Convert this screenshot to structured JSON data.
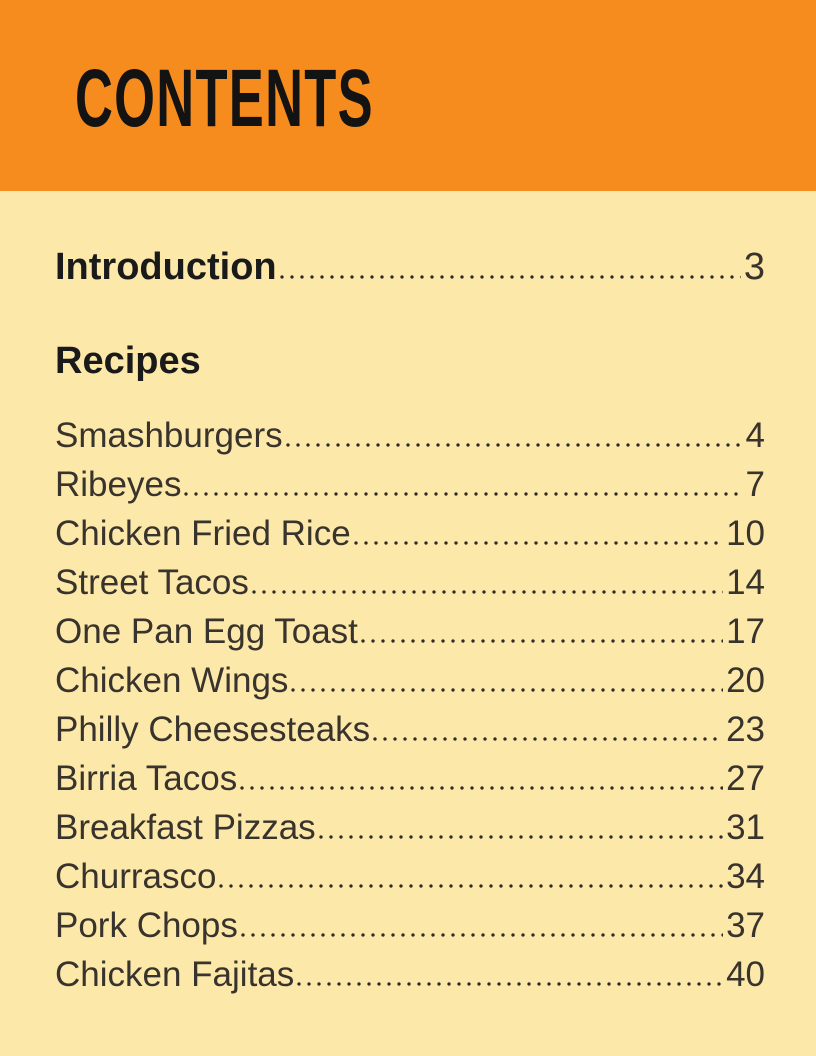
{
  "page": {
    "title": "CONTENTS",
    "colors": {
      "header_bg": "#F78C1E",
      "page_bg": "#FCE8A9",
      "title_color": "#131313",
      "heading_color": "#1A1A1A",
      "entry_color": "#38332C"
    }
  },
  "toc": {
    "intro": {
      "label": "Introduction",
      "page": "3"
    },
    "section_heading": "Recipes",
    "entries": [
      {
        "label": "Smashburgers",
        "page": "4"
      },
      {
        "label": "Ribeyes",
        "page": "7"
      },
      {
        "label": "Chicken Fried Rice",
        "page": "10"
      },
      {
        "label": "Street Tacos",
        "page": "14"
      },
      {
        "label": "One Pan Egg Toast",
        "page": "17"
      },
      {
        "label": "Chicken Wings",
        "page": "20"
      },
      {
        "label": "Philly Cheesesteaks",
        "page": "23"
      },
      {
        "label": "Birria Tacos",
        "page": "27"
      },
      {
        "label": "Breakfast Pizzas",
        "page": "31"
      },
      {
        "label": "Churrasco",
        "page": "34"
      },
      {
        "label": "Pork Chops",
        "page": "37"
      },
      {
        "label": "Chicken Fajitas",
        "page": "40"
      }
    ]
  }
}
